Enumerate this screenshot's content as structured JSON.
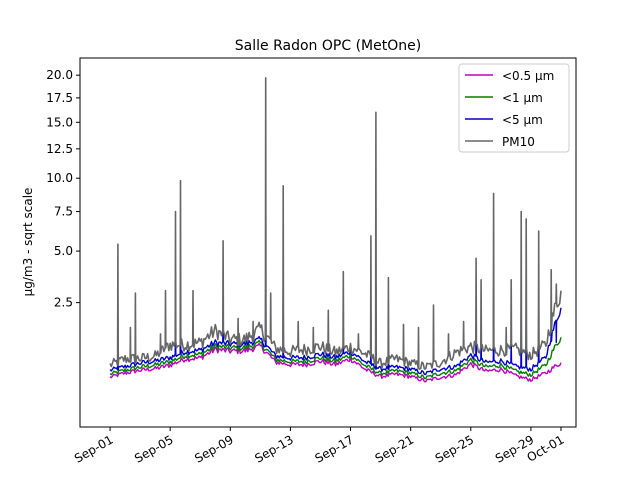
{
  "chart_data": {
    "type": "line",
    "title": "Salle Radon OPC (MetOne)",
    "xlabel": "",
    "ylabel": "µg/m3 - sqrt scale",
    "yscale": "sqrt",
    "ylim": [
      0.0,
      22.0
    ],
    "xlim": [
      "2021-08-30",
      "2021-10-02"
    ],
    "grid": false,
    "legend_position": "top-right",
    "x_ticks": [
      "Sep-01",
      "Sep-05",
      "Sep-09",
      "Sep-13",
      "Sep-17",
      "Sep-21",
      "Sep-25",
      "Sep-29",
      "Oct-01"
    ],
    "x_tick_dates": [
      "2021-09-01",
      "2021-09-05",
      "2021-09-09",
      "2021-09-13",
      "2021-09-17",
      "2021-09-21",
      "2021-09-25",
      "2021-09-29",
      "2021-10-01"
    ],
    "y_ticks": [
      2.5,
      5.0,
      7.5,
      10.0,
      12.5,
      15.0,
      17.5,
      20.0
    ],
    "y_tick_labels": [
      "2.5",
      "5.0",
      "7.5",
      "10.0",
      "12.5",
      "15.0",
      "17.5",
      "20.0"
    ],
    "x": [
      "2021-09-01",
      "2021-09-02",
      "2021-09-03",
      "2021-09-04",
      "2021-09-05",
      "2021-09-06",
      "2021-09-07",
      "2021-09-08",
      "2021-09-09",
      "2021-09-10",
      "2021-09-11",
      "2021-09-12",
      "2021-09-13",
      "2021-09-14",
      "2021-09-15",
      "2021-09-16",
      "2021-09-17",
      "2021-09-18",
      "2021-09-19",
      "2021-09-20",
      "2021-09-21",
      "2021-09-22",
      "2021-09-23",
      "2021-09-24",
      "2021-09-25",
      "2021-09-26",
      "2021-09-27",
      "2021-09-28",
      "2021-09-29",
      "2021-09-30",
      "2021-10-01"
    ],
    "series": [
      {
        "name": "<0.5 µm",
        "color": "#bf00bf",
        "values": [
          0.4,
          0.47,
          0.52,
          0.55,
          0.62,
          0.75,
          0.77,
          0.97,
          0.93,
          0.94,
          1.05,
          0.68,
          0.63,
          0.63,
          0.7,
          0.63,
          0.75,
          0.53,
          0.41,
          0.45,
          0.41,
          0.34,
          0.4,
          0.44,
          0.64,
          0.5,
          0.54,
          0.42,
          0.36,
          0.47,
          0.67
        ]
      },
      {
        "name": "<1 µm",
        "color": "#008000",
        "values": [
          0.45,
          0.52,
          0.58,
          0.62,
          0.69,
          0.83,
          0.85,
          1.05,
          1.01,
          1.02,
          1.13,
          0.74,
          0.69,
          0.7,
          0.77,
          0.7,
          0.83,
          0.6,
          0.46,
          0.51,
          0.47,
          0.39,
          0.47,
          0.51,
          0.73,
          0.58,
          0.62,
          0.5,
          0.44,
          0.62,
          1.3
        ]
      },
      {
        "name": "<5 µm",
        "color": "#0000cc",
        "values": [
          0.52,
          0.59,
          0.66,
          0.7,
          0.78,
          0.92,
          0.95,
          1.15,
          1.11,
          1.12,
          1.23,
          0.82,
          0.77,
          0.78,
          0.86,
          0.78,
          0.92,
          0.68,
          0.54,
          0.58,
          0.54,
          0.46,
          0.55,
          0.59,
          0.83,
          0.67,
          0.71,
          0.59,
          0.54,
          0.78,
          2.3
        ]
      },
      {
        "name": "PM10",
        "color": "#666666",
        "values": [
          0.62,
          0.75,
          0.76,
          0.81,
          1.1,
          1.1,
          1.15,
          1.5,
          1.24,
          1.24,
          1.55,
          1.0,
          0.92,
          0.98,
          1.05,
          0.9,
          1.04,
          0.86,
          0.65,
          0.75,
          0.66,
          0.58,
          0.68,
          0.9,
          1.05,
          0.94,
          0.96,
          0.98,
          0.84,
          1.1,
          3.0
        ]
      }
    ],
    "spikes": [
      {
        "date": "2021-09-01",
        "value": 5.4
      },
      {
        "date": "2021-09-02",
        "value": 1.6
      },
      {
        "date": "2021-09-02",
        "value": 2.9
      },
      {
        "date": "2021-09-04",
        "value": 1.4
      },
      {
        "date": "2021-09-04",
        "value": 3.0
      },
      {
        "date": "2021-09-05",
        "value": 7.5
      },
      {
        "date": "2021-09-05",
        "value": 9.8
      },
      {
        "date": "2021-09-06",
        "value": 3.0
      },
      {
        "date": "2021-09-08",
        "value": 5.6
      },
      {
        "date": "2021-09-09",
        "value": 1.9
      },
      {
        "date": "2021-09-10",
        "value": 1.8
      },
      {
        "date": "2021-09-11",
        "value": 19.7
      },
      {
        "date": "2021-09-11",
        "value": 2.9
      },
      {
        "date": "2021-09-12",
        "value": 9.4
      },
      {
        "date": "2021-09-13",
        "value": 1.8
      },
      {
        "date": "2021-09-14",
        "value": 1.6
      },
      {
        "date": "2021-09-15",
        "value": 2.2
      },
      {
        "date": "2021-09-16",
        "value": 3.9
      },
      {
        "date": "2021-09-17",
        "value": 1.4
      },
      {
        "date": "2021-09-18",
        "value": 5.9
      },
      {
        "date": "2021-09-18",
        "value": 16.0
      },
      {
        "date": "2021-09-19",
        "value": 3.6
      },
      {
        "date": "2021-09-20",
        "value": 1.7
      },
      {
        "date": "2021-09-21",
        "value": 1.6
      },
      {
        "date": "2021-09-22",
        "value": 2.4
      },
      {
        "date": "2021-09-23",
        "value": 1.4
      },
      {
        "date": "2021-09-24",
        "value": 1.8
      },
      {
        "date": "2021-09-25",
        "value": 4.6
      },
      {
        "date": "2021-09-25",
        "value": 3.5
      },
      {
        "date": "2021-09-26",
        "value": 8.8
      },
      {
        "date": "2021-09-27",
        "value": 1.6
      },
      {
        "date": "2021-09-27",
        "value": 3.5
      },
      {
        "date": "2021-09-28",
        "value": 7.5
      },
      {
        "date": "2021-09-28",
        "value": 7.0
      },
      {
        "date": "2021-09-29",
        "value": 6.2
      },
      {
        "date": "2021-09-30",
        "value": 4.0
      },
      {
        "date": "2021-09-30",
        "value": 3.3
      }
    ]
  }
}
